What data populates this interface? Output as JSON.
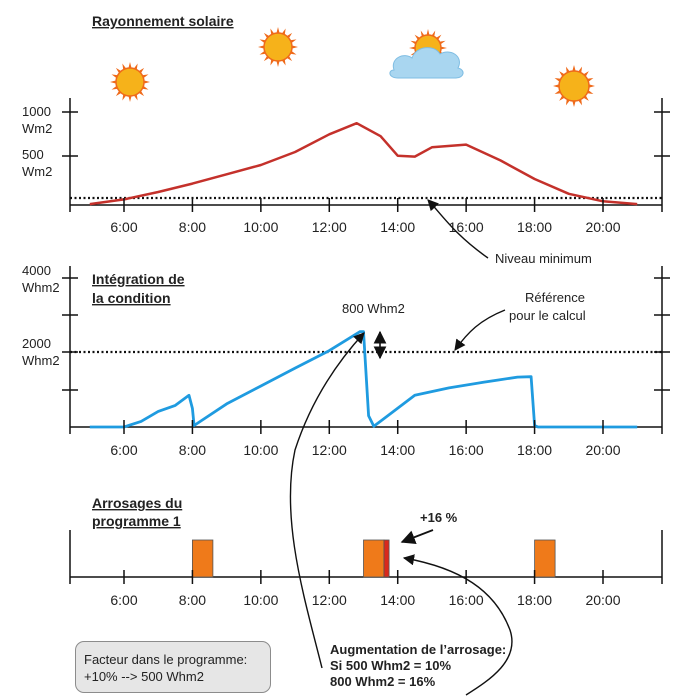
{
  "colors": {
    "radiation_line": "#c4312b",
    "integration_line": "#1f9be0",
    "bars": "#ef7a1a",
    "extra_bar": "#d9291c",
    "sun": "#f6b21a",
    "sun_rays": "#ef6a1a",
    "cloud": "#a9d6f0"
  },
  "icons": [
    "sun-icon",
    "sun-icon",
    "sun-behind-cloud-icon",
    "sun-icon"
  ],
  "sections": {
    "radiation": {
      "title": "Rayonnement solaire",
      "y_labels": [
        {
          "top": "1000",
          "bottom": "Wm2"
        },
        {
          "top": "500",
          "bottom": "Wm2"
        }
      ],
      "annotation": "Niveau minimum"
    },
    "integration": {
      "title_line1": "Intégration de",
      "title_line2": "la condition",
      "y_labels": [
        {
          "top": "4000",
          "bottom": "Whm2"
        },
        {
          "top": "2000",
          "bottom": "Whm2"
        }
      ],
      "delta_label": "800 Whm2",
      "reference_line1": "Référence",
      "reference_line2": "pour le calcul"
    },
    "watering": {
      "title_line1": "Arrosages du",
      "title_line2": "programme 1",
      "increase_label": "+16 %"
    }
  },
  "x_ticks": [
    "6:00",
    "8:00",
    "10:00",
    "12:00",
    "14:00",
    "16:00",
    "18:00",
    "20:00"
  ],
  "chart_data": [
    {
      "type": "line",
      "title": "Rayonnement solaire",
      "x_unit": "hour of day",
      "xlim": [
        5,
        21
      ],
      "ylim": [
        0,
        1000
      ],
      "ylabel": "Wm2",
      "series": [
        {
          "values_x": [
            5,
            6,
            7,
            8,
            9,
            10,
            11,
            12,
            12.8,
            13.5,
            14,
            14.5,
            15,
            16,
            17,
            18,
            19,
            20,
            21
          ],
          "values_y": [
            10,
            60,
            140,
            230,
            330,
            430,
            570,
            760,
            880,
            740,
            530,
            520,
            620,
            650,
            480,
            280,
            120,
            40,
            10
          ]
        }
      ],
      "reference_line": {
        "y": 40,
        "label": "Niveau minimum"
      }
    },
    {
      "type": "line",
      "title": "Intégration de la condition",
      "x_unit": "hour of day",
      "xlim": [
        5,
        21
      ],
      "ylim": [
        0,
        4000
      ],
      "ylabel": "Whm2",
      "series": [
        {
          "values_x": [
            5,
            6,
            6.5,
            7,
            7.5,
            7.9,
            8.0,
            8.05,
            9,
            10,
            11,
            12,
            12.9,
            13.0,
            13.15,
            13.3,
            14.5,
            15.5,
            16.5,
            17.5,
            17.9,
            18.0,
            18.1,
            21
          ],
          "values_y": [
            0,
            0,
            150,
            420,
            580,
            850,
            500,
            40,
            620,
            1100,
            1580,
            2050,
            2560,
            2560,
            300,
            20,
            850,
            1050,
            1200,
            1340,
            1350,
            40,
            0,
            0
          ]
        }
      ],
      "reference_line": {
        "y": 2000,
        "label": "Référence pour le calcul"
      },
      "annotation": {
        "x": 13.0,
        "label": "800 Whm2"
      }
    },
    {
      "type": "bar",
      "title": "Arrosages du programme 1",
      "x_unit": "hour of day",
      "xlim": [
        5,
        21
      ],
      "bars": [
        {
          "start": 8.0,
          "end": 8.6
        },
        {
          "start": 13.0,
          "end": 13.6
        },
        {
          "start": 13.6,
          "end": 13.75,
          "label": "+16 %"
        },
        {
          "start": 18.0,
          "end": 18.6
        }
      ]
    }
  ],
  "factor_box": {
    "line1": "Facteur dans le programme:",
    "line2": "+10%  --> 500 Whm2"
  },
  "augmentation": {
    "line1": "Augmentation de l’arrosage:",
    "line2": "Si 500 Whm2 = 10%",
    "line3": "800 Whm2 = 16%"
  }
}
